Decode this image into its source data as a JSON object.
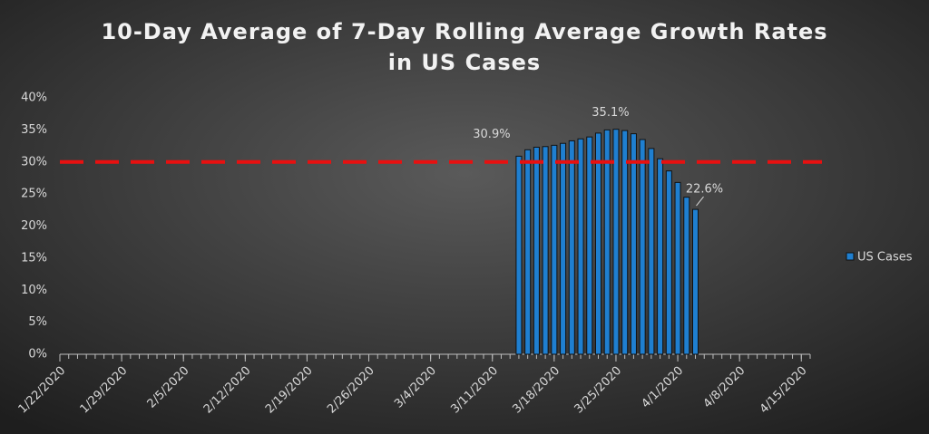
{
  "chart_data": {
    "type": "bar",
    "title": [
      "10-Day Average of 7-Day Rolling Average Growth Rates",
      "in US Cases"
    ],
    "x": [
      "3/14/2020",
      "3/15/2020",
      "3/16/2020",
      "3/17/2020",
      "3/18/2020",
      "3/19/2020",
      "3/20/2020",
      "3/21/2020",
      "3/22/2020",
      "3/23/2020",
      "3/24/2020",
      "3/25/2020",
      "3/26/2020",
      "3/27/2020",
      "3/28/2020",
      "3/29/2020",
      "3/30/2020",
      "3/31/2020",
      "4/1/2020",
      "4/2/2020",
      "4/3/2020"
    ],
    "series": [
      {
        "name": "US Cases",
        "color": "#1f7fd0",
        "values": [
          30.9,
          31.9,
          32.3,
          32.4,
          32.6,
          32.9,
          33.3,
          33.6,
          33.9,
          34.5,
          35.0,
          35.1,
          34.9,
          34.4,
          33.5,
          32.1,
          30.5,
          28.6,
          26.8,
          24.5,
          22.6
        ],
        "value_labels": [
          "30.9%",
          null,
          null,
          null,
          null,
          null,
          null,
          null,
          null,
          null,
          null,
          "35.1%",
          null,
          null,
          null,
          null,
          null,
          null,
          null,
          null,
          "22.6%"
        ]
      }
    ],
    "xlim": [
      "1/22/2020",
      "4/16/2020"
    ],
    "xticks": [
      "1/22/2020",
      "1/29/2020",
      "2/5/2020",
      "2/12/2020",
      "2/19/2020",
      "2/26/2020",
      "3/4/2020",
      "3/11/2020",
      "3/18/2020",
      "3/25/2020",
      "4/1/2020",
      "4/8/2020",
      "4/15/2020"
    ],
    "ylim": [
      0,
      40
    ],
    "yticks": [
      {
        "value": 0,
        "label": "0%"
      },
      {
        "value": 5,
        "label": "5%"
      },
      {
        "value": 10,
        "label": "10%"
      },
      {
        "value": 15,
        "label": "15%"
      },
      {
        "value": 20,
        "label": "20%"
      },
      {
        "value": 25,
        "label": "25%"
      },
      {
        "value": 30,
        "label": "30%"
      },
      {
        "value": 35,
        "label": "35%"
      },
      {
        "value": 40,
        "label": "40%"
      }
    ],
    "reference_line": {
      "value": 30,
      "color": "#e81010"
    },
    "legend": "right"
  }
}
